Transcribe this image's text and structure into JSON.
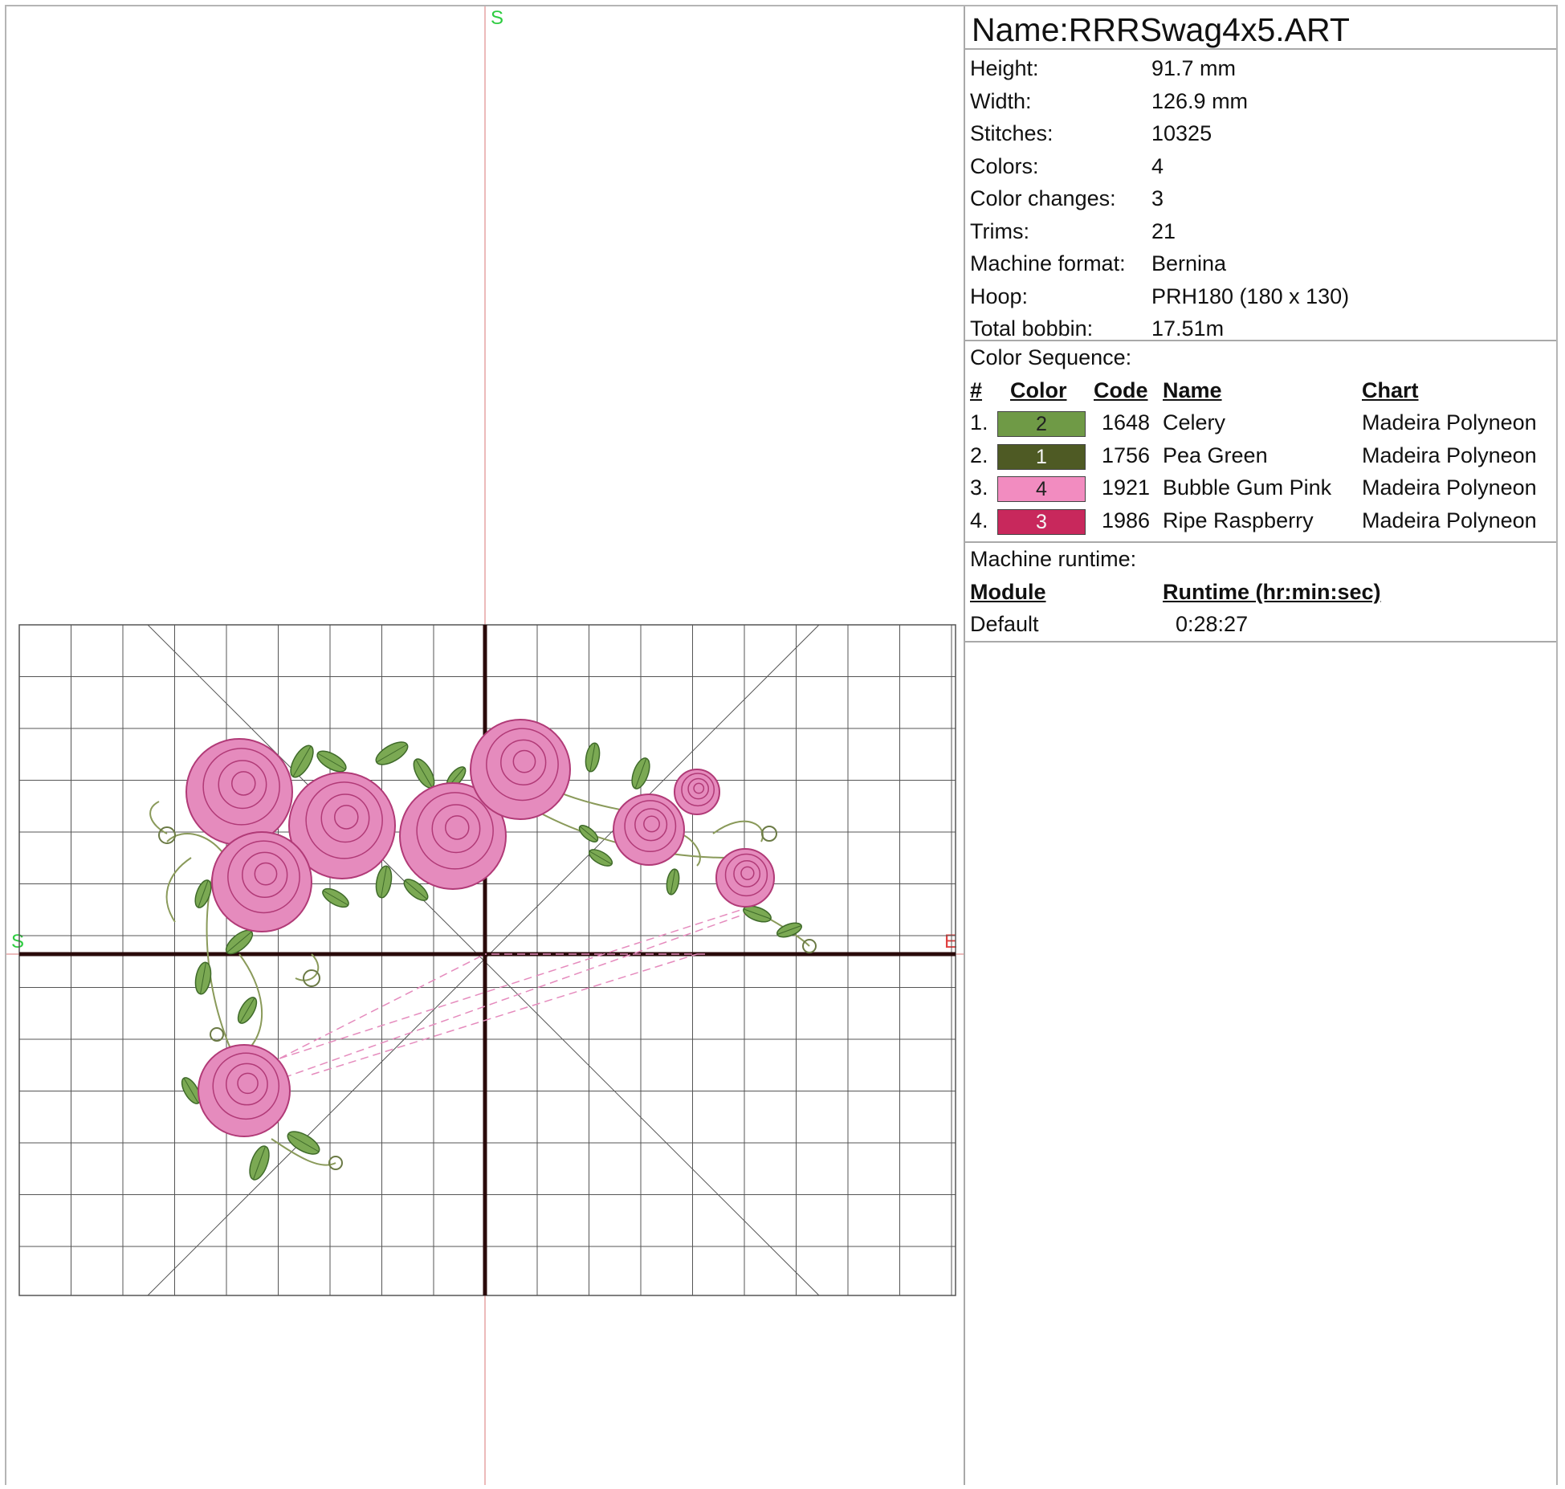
{
  "design_name": "Name:RRRSwag4x5.ART",
  "stats": [
    {
      "label": "Height:",
      "value": "91.7 mm"
    },
    {
      "label": "Width:",
      "value": "126.9 mm"
    },
    {
      "label": "Stitches:",
      "value": "10325"
    },
    {
      "label": "Colors:",
      "value": "4"
    },
    {
      "label": "Color changes:",
      "value": "3"
    },
    {
      "label": "Trims:",
      "value": "21"
    },
    {
      "label": "Machine format:",
      "value": "Bernina"
    },
    {
      "label": "Hoop:",
      "value": "PRH180 (180 x 130)"
    },
    {
      "label": "Total bobbin:",
      "value": "17.51m"
    }
  ],
  "color_sequence": {
    "title": "Color Sequence:",
    "headers": {
      "num": "#",
      "color": "Color",
      "code": "Code",
      "name": "Name",
      "chart": "Chart"
    },
    "rows": [
      {
        "num": "1.",
        "swatch_label": "2",
        "swatch_color": "#6f9a46",
        "code": "1648",
        "name": "Celery",
        "chart": "Madeira Polyneon"
      },
      {
        "num": "2.",
        "swatch_label": "1",
        "swatch_color": "#4e5a24",
        "code": "1756",
        "name": "Pea Green",
        "chart": "Madeira Polyneon"
      },
      {
        "num": "3.",
        "swatch_label": "4",
        "swatch_color": "#f28cc0",
        "code": "1921",
        "name": "Bubble Gum Pink",
        "chart": "Madeira Polyneon"
      },
      {
        "num": "4.",
        "swatch_label": "3",
        "swatch_color": "#c8285c",
        "code": "1986",
        "name": "Ripe Raspberry",
        "chart": "Madeira Polyneon"
      }
    ]
  },
  "runtime": {
    "title": "Machine runtime:",
    "headers": {
      "module": "Module",
      "runtime": "Runtime (hr:min:sec)"
    },
    "rows": [
      {
        "module": "Default",
        "runtime": "0:28:27"
      }
    ]
  },
  "canvas_markers": {
    "top": "S",
    "left": "S",
    "right": "E"
  },
  "colors": {
    "grid": "#555555",
    "axis": "#2a0a0a",
    "guide": "#e6a3a3",
    "rose_fill": "#e58bbd",
    "rose_stroke": "#b13a77",
    "leaf_fill": "#7ba953",
    "leaf_stroke": "#3f6a2a",
    "marker_start": "#2ecc40",
    "marker_end": "#e04040"
  }
}
